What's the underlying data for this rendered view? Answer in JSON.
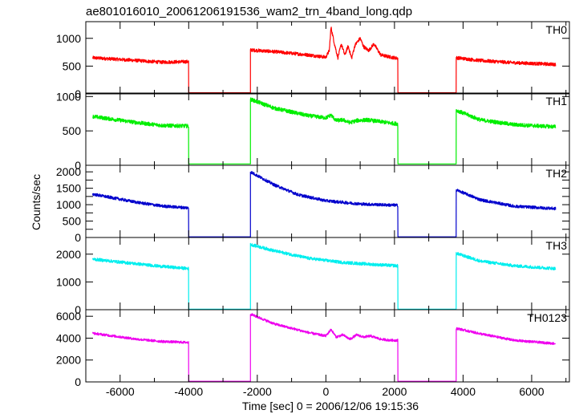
{
  "chart_data": {
    "type": "line",
    "title": "ae801016010_20061206191536_wam2_trn_4band_long.qdp",
    "xlabel": "Time [sec] 0 = 2006/12/06 19:15:36",
    "ylabel": "Counts/sec",
    "xlim": [
      -7000,
      7100
    ],
    "xticks": [
      -6000,
      -4000,
      -2000,
      0,
      2000,
      4000,
      6000
    ],
    "grid": false,
    "gaps": [
      [
        -4000,
        -2200
      ],
      [
        2100,
        3800
      ]
    ],
    "panels": [
      {
        "name": "TH0",
        "color": "#ff0000",
        "ylim": [
          0,
          1300
        ],
        "yticks": [
          0,
          500,
          1000
        ],
        "noise": 30,
        "segments": [
          {
            "x": [
              -6800,
              -5500,
              -4800,
              -4000
            ],
            "y": [
              650,
              600,
              570,
              580
            ]
          },
          {
            "x": [
              -4000,
              -2200
            ],
            "y": [
              20,
              20
            ]
          },
          {
            "x": [
              -2200,
              -1500,
              -500,
              0,
              100,
              150,
              250,
              350,
              450,
              550,
              650,
              750,
              850,
              1000,
              1100,
              1250,
              1400,
              1600,
              1900,
              2100
            ],
            "y": [
              790,
              760,
              700,
              660,
              780,
              1200,
              900,
              650,
              900,
              700,
              860,
              640,
              880,
              1000,
              850,
              780,
              900,
              700,
              660,
              640
            ]
          },
          {
            "x": [
              2100,
              3800
            ],
            "y": [
              20,
              20
            ]
          },
          {
            "x": [
              3800,
              4500,
              5500,
              6700
            ],
            "y": [
              650,
              600,
              560,
              530
            ]
          }
        ]
      },
      {
        "name": "TH1",
        "color": "#00ee00",
        "ylim": [
          0,
          1050
        ],
        "yticks": [
          0,
          500,
          1000
        ],
        "noise": 28,
        "segments": [
          {
            "x": [
              -6800,
              -5500,
              -4800,
              -4000
            ],
            "y": [
              710,
              620,
              580,
              570
            ]
          },
          {
            "x": [
              -4000,
              -2200
            ],
            "y": [
              20,
              20
            ]
          },
          {
            "x": [
              -2200,
              -1500,
              -500,
              0,
              150,
              300,
              500,
              700,
              900,
              1200,
              1500,
              1800,
              2100
            ],
            "y": [
              960,
              830,
              720,
              690,
              730,
              650,
              660,
              620,
              650,
              660,
              640,
              620,
              600
            ]
          },
          {
            "x": [
              2100,
              3800
            ],
            "y": [
              20,
              20
            ]
          },
          {
            "x": [
              3800,
              4500,
              5500,
              6700
            ],
            "y": [
              800,
              660,
              590,
              560
            ]
          }
        ]
      },
      {
        "name": "TH2",
        "color": "#0000cc",
        "ylim": [
          0,
          2200
        ],
        "yticks": [
          0,
          250,
          500,
          750,
          1000,
          1250,
          1500,
          1750,
          2000
        ],
        "ytick_labels": [
          0,
          500,
          1000,
          1500,
          2000
        ],
        "noise": 45,
        "segments": [
          {
            "x": [
              -6800,
              -5500,
              -4800,
              -4000
            ],
            "y": [
              1320,
              1070,
              960,
              900
            ]
          },
          {
            "x": [
              -4000,
              -2200
            ],
            "y": [
              20,
              20
            ]
          },
          {
            "x": [
              -2200,
              -1500,
              -800,
              0,
              1000,
              2100
            ],
            "y": [
              2000,
              1600,
              1300,
              1120,
              1020,
              980
            ]
          },
          {
            "x": [
              2100,
              3800
            ],
            "y": [
              20,
              20
            ]
          },
          {
            "x": [
              3800,
              4500,
              5500,
              6700
            ],
            "y": [
              1450,
              1150,
              950,
              880
            ]
          }
        ]
      },
      {
        "name": "TH3",
        "color": "#00eeee",
        "ylim": [
          0,
          2600
        ],
        "yticks": [
          0,
          1000,
          2000
        ],
        "noise": 55,
        "segments": [
          {
            "x": [
              -6800,
              -5500,
              -4800,
              -4000
            ],
            "y": [
              1820,
              1650,
              1560,
              1480
            ]
          },
          {
            "x": [
              -4000,
              -2200
            ],
            "y": [
              20,
              20
            ]
          },
          {
            "x": [
              -2200,
              -1500,
              -500,
              500,
              1500,
              2100
            ],
            "y": [
              2350,
              2120,
              1850,
              1700,
              1620,
              1580
            ]
          },
          {
            "x": [
              2100,
              3800
            ],
            "y": [
              20,
              20
            ]
          },
          {
            "x": [
              3800,
              4500,
              5500,
              6700
            ],
            "y": [
              2030,
              1750,
              1580,
              1480
            ]
          }
        ]
      },
      {
        "name": "TH0123",
        "color": "#ee00ee",
        "ylim": [
          0,
          6600
        ],
        "yticks": [
          0,
          2000,
          4000,
          6000
        ],
        "noise": 110,
        "segments": [
          {
            "x": [
              -6800,
              -5500,
              -4800,
              -4000
            ],
            "y": [
              4450,
              3900,
              3700,
              3600
            ]
          },
          {
            "x": [
              -4000,
              -2200
            ],
            "y": [
              60,
              60
            ]
          },
          {
            "x": [
              -2200,
              -1500,
              -500,
              0,
              150,
              300,
              500,
              700,
              900,
              1100,
              1300,
              1600,
              1900,
              2100
            ],
            "y": [
              6200,
              5300,
              4500,
              4200,
              4800,
              4100,
              4300,
              3900,
              4300,
              4100,
              4200,
              3900,
              3800,
              3800
            ]
          },
          {
            "x": [
              2100,
              3800
            ],
            "y": [
              60,
              60
            ]
          },
          {
            "x": [
              3800,
              4500,
              5500,
              6700
            ],
            "y": [
              4900,
              4400,
              3800,
              3500
            ]
          }
        ]
      }
    ]
  }
}
